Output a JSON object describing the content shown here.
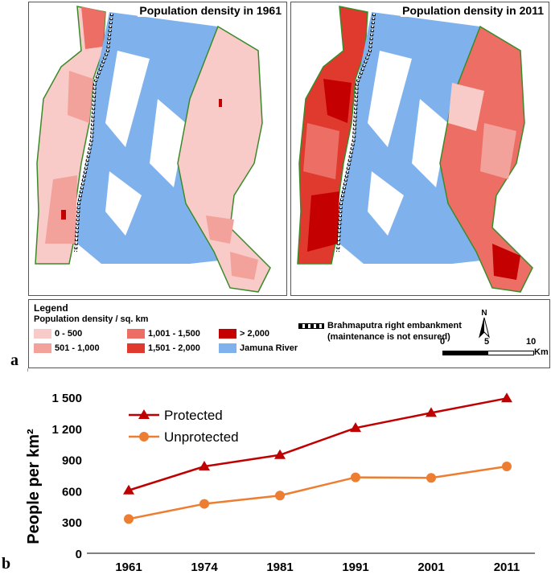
{
  "panels": [
    {
      "title": "Population density in 1961"
    },
    {
      "title": "Population density in 2011"
    }
  ],
  "panel_letters": {
    "a": "a",
    "b": "b"
  },
  "legend": {
    "title": "Legend",
    "subtitle": "Population density / sq. km",
    "classes": [
      {
        "label": "0 - 500",
        "color": "#f8cbc8"
      },
      {
        "label": "501 - 1,000",
        "color": "#f3a19b"
      },
      {
        "label": "1,001 - 1,500",
        "color": "#ec6e64"
      },
      {
        "label": "1,501 - 2,000",
        "color": "#e03a2f"
      },
      {
        "label": "> 2,000",
        "color": "#c40000"
      }
    ],
    "river_label": "Jamuna River",
    "river_color": "#7fb2ec",
    "embankment_line1": "Brahmaputra right embankment",
    "embankment_line2": "(maintenance is not ensured)"
  },
  "north_label": "N",
  "scale": {
    "ticks": [
      "0",
      "5",
      "10"
    ],
    "unit": "Km"
  },
  "chart_data": {
    "type": "line",
    "x": [
      "1961",
      "1974",
      "1981",
      "1991",
      "2001",
      "2011"
    ],
    "series": [
      {
        "name": "Protected",
        "values": [
          605,
          835,
          945,
          1205,
          1350,
          1490
        ],
        "color": "#c00000",
        "marker": "triangle"
      },
      {
        "name": "Unprotected",
        "values": [
          330,
          475,
          555,
          730,
          725,
          835
        ],
        "color": "#ed7d31",
        "marker": "circle"
      }
    ],
    "ylabel": "People per km²",
    "ylim": [
      0,
      1500
    ],
    "yticks": [
      "0",
      "300",
      "600",
      "900",
      "1 200",
      "1 500"
    ],
    "grid": false,
    "legend_position": "top-left"
  }
}
